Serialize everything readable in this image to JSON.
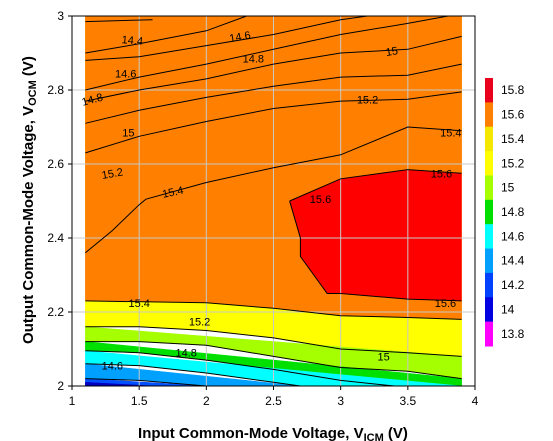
{
  "chart_data": {
    "type": "contour",
    "xlabel_main": "Input Common-Mode Voltage, V",
    "xlabel_sub": "ICM",
    "xlabel_unit": " (V)",
    "ylabel_main": "Output Common-Mode Voltage, V",
    "ylabel_sub": "OCM",
    "ylabel_unit": " (V)",
    "xlim": [
      1,
      4
    ],
    "ylim": [
      2,
      3
    ],
    "x_ticks": [
      "1",
      "1.5",
      "2",
      "2.5",
      "3",
      "3.5",
      "4"
    ],
    "y_ticks": [
      "2",
      "2.2",
      "2.4",
      "2.6",
      "2.8",
      "3"
    ],
    "grid": true,
    "data_x_range": [
      1.1,
      3.9
    ],
    "levels": [
      13.8,
      14,
      14.2,
      14.4,
      14.6,
      14.8,
      15,
      15.2,
      15.4,
      15.6,
      15.8
    ],
    "colorbar_labels": [
      "15.8",
      "15.6",
      "15.4",
      "15.2",
      "15",
      "14.8",
      "14.6",
      "14.4",
      "14.2",
      "14",
      "13.8"
    ],
    "colorbar_colors": [
      "#e8001c",
      "#ff8000",
      "#f5e800",
      "#ffff00",
      "#a6ff00",
      "#00e000",
      "#00ffff",
      "#00a0ff",
      "#0040ff",
      "#0000e0",
      "#ff00ff"
    ],
    "bands": [
      {
        "level": 14.0,
        "color": "#b020e0",
        "upper": [
          [
            1.1,
            3.0
          ],
          [
            1.6,
            3.0
          ]
        ],
        "lower": [
          [
            1.1,
            2.985
          ],
          [
            1.6,
            2.99
          ]
        ]
      },
      {
        "level": 14.2,
        "color": "#0000e0",
        "upper": [
          [
            1.1,
            3.0
          ],
          [
            1.3,
            3.0
          ],
          [
            1.6,
            2.985
          ],
          [
            2.0,
            3.0
          ],
          [
            2.2,
            3.0
          ]
        ],
        "lower": [
          [
            1.1,
            2.9
          ],
          [
            1.5,
            2.925
          ],
          [
            2.0,
            2.96
          ],
          [
            2.3,
            3.0
          ]
        ]
      },
      {
        "level": 14.4,
        "color": "#0050ff",
        "upper": [
          [
            1.1,
            3.0
          ],
          [
            2.3,
            3.0
          ]
        ],
        "lower": [
          [
            1.1,
            2.88
          ],
          [
            1.5,
            2.89
          ],
          [
            2.0,
            2.92
          ],
          [
            2.5,
            2.95
          ],
          [
            3.0,
            2.99
          ],
          [
            3.2,
            3.0
          ]
        ]
      },
      {
        "level": 14.6,
        "color": "#00ffff",
        "upper": [
          [
            1.1,
            3.0
          ],
          [
            3.2,
            3.0
          ]
        ],
        "lower": [
          [
            1.1,
            2.8
          ],
          [
            1.5,
            2.835
          ],
          [
            2.0,
            2.87
          ],
          [
            2.5,
            2.91
          ],
          [
            3.0,
            2.95
          ],
          [
            3.5,
            2.98
          ],
          [
            3.8,
            3.0
          ]
        ]
      },
      {
        "level": 14.8,
        "color": "#00e000",
        "upper": [
          [
            1.1,
            3.0
          ],
          [
            3.8,
            3.0
          ],
          [
            3.9,
            3.0
          ]
        ],
        "lower": [
          [
            1.1,
            2.77
          ],
          [
            1.5,
            2.8
          ],
          [
            2.0,
            2.83
          ],
          [
            2.5,
            2.87
          ],
          [
            3.0,
            2.9
          ],
          [
            3.5,
            2.91
          ],
          [
            3.9,
            2.945
          ]
        ]
      },
      {
        "level": 15.0,
        "color": "#a6ff00",
        "upper": [
          [
            1.1,
            3.0
          ],
          [
            3.9,
            3.0
          ]
        ],
        "lower": [
          [
            1.1,
            2.71
          ],
          [
            1.5,
            2.745
          ],
          [
            2.0,
            2.78
          ],
          [
            2.5,
            2.81
          ],
          [
            3.0,
            2.835
          ],
          [
            3.5,
            2.84
          ],
          [
            3.9,
            2.87
          ]
        ]
      },
      {
        "level": 15.2,
        "color": "#f5e800",
        "upper": [
          [
            1.1,
            3.0
          ],
          [
            3.9,
            3.0
          ]
        ],
        "lower": [
          [
            1.1,
            2.63
          ],
          [
            1.5,
            2.675
          ],
          [
            2.0,
            2.715
          ],
          [
            2.5,
            2.75
          ],
          [
            3.0,
            2.77
          ],
          [
            3.5,
            2.775
          ],
          [
            3.9,
            2.795
          ]
        ]
      },
      {
        "level": 15.4,
        "color": "#ffff00",
        "upper": [
          [
            1.1,
            3.0
          ],
          [
            3.9,
            3.0
          ]
        ],
        "lower": [
          [
            1.1,
            2.36
          ],
          [
            1.3,
            2.42
          ],
          [
            1.5,
            2.49
          ],
          [
            1.55,
            2.505
          ],
          [
            2.0,
            2.55
          ],
          [
            2.5,
            2.59
          ],
          [
            3.0,
            2.625
          ],
          [
            3.5,
            2.7
          ],
          [
            3.9,
            2.69
          ]
        ]
      },
      {
        "level": 15.6,
        "color": "#ff8000",
        "upper": [
          [
            1.1,
            3.0
          ],
          [
            3.9,
            3.0
          ]
        ],
        "lower": [
          [
            1.1,
            2.23
          ],
          [
            2.0,
            2.225
          ],
          [
            2.5,
            2.21
          ],
          [
            3.0,
            2.19
          ],
          [
            3.5,
            2.185
          ],
          [
            3.9,
            2.18
          ]
        ]
      },
      {
        "level": 15.2,
        "color": "#ffff00",
        "upper": [
          [
            1.1,
            2.23
          ],
          [
            2.0,
            2.225
          ],
          [
            2.5,
            2.21
          ],
          [
            3.0,
            2.19
          ],
          [
            3.5,
            2.185
          ],
          [
            3.9,
            2.18
          ]
        ],
        "lower": [
          [
            1.1,
            2.16
          ],
          [
            1.5,
            2.16
          ],
          [
            2.0,
            2.15
          ],
          [
            2.5,
            2.13
          ],
          [
            3.0,
            2.1
          ],
          [
            3.5,
            2.09
          ],
          [
            3.9,
            2.08
          ]
        ]
      },
      {
        "level": 15.0,
        "color": "#a6ff00",
        "upper": [
          [
            1.1,
            2.16
          ],
          [
            3.9,
            2.08
          ]
        ],
        "lower": [
          [
            1.1,
            2.12
          ],
          [
            1.5,
            2.12
          ],
          [
            2.0,
            2.11
          ],
          [
            2.5,
            2.08
          ],
          [
            3.0,
            2.05
          ],
          [
            3.5,
            2.04
          ],
          [
            3.9,
            2.02
          ]
        ]
      },
      {
        "level": 14.8,
        "color": "#00e000",
        "upper": [
          [
            1.1,
            2.12
          ],
          [
            3.9,
            2.02
          ]
        ],
        "lower": [
          [
            1.1,
            2.095
          ],
          [
            1.5,
            2.09
          ],
          [
            2.0,
            2.07
          ],
          [
            2.5,
            2.045
          ],
          [
            3.0,
            2.015
          ],
          [
            3.4,
            2.0
          ],
          [
            3.9,
            2.0
          ]
        ]
      },
      {
        "level": 14.6,
        "color": "#00ffff",
        "upper": [
          [
            1.1,
            2.095
          ],
          [
            3.9,
            2.0
          ]
        ],
        "lower": [
          [
            1.1,
            2.06
          ],
          [
            1.5,
            2.055
          ],
          [
            2.0,
            2.035
          ],
          [
            2.5,
            2.01
          ],
          [
            2.7,
            2.0
          ]
        ]
      },
      {
        "level": 14.4,
        "color": "#00a0ff",
        "upper": [
          [
            1.1,
            2.06
          ],
          [
            2.7,
            2.0
          ]
        ],
        "lower": [
          [
            1.1,
            2.02
          ],
          [
            1.5,
            2.015
          ],
          [
            2.0,
            2.0
          ]
        ]
      },
      {
        "level": 14.2,
        "color": "#0050ff",
        "upper": [
          [
            1.1,
            2.02
          ],
          [
            2.0,
            2.0
          ]
        ],
        "lower": [
          [
            1.1,
            2.0
          ],
          [
            1.6,
            2.0
          ]
        ]
      },
      {
        "level": 14.0,
        "color": "#0000c0",
        "upper": [
          [
            1.1,
            2.01
          ],
          [
            1.6,
            2.0
          ]
        ],
        "lower": [
          [
            1.1,
            2.0
          ],
          [
            1.6,
            2.0
          ]
        ]
      }
    ],
    "peak_region": {
      "level": 15.6,
      "color": "#ff0000",
      "points": [
        [
          2.62,
          2.5
        ],
        [
          3.0,
          2.56
        ],
        [
          3.5,
          2.585
        ],
        [
          3.9,
          2.575
        ],
        [
          3.9,
          2.23
        ],
        [
          3.5,
          2.235
        ],
        [
          3.0,
          2.25
        ],
        [
          2.9,
          2.25
        ],
        [
          2.7,
          2.35
        ],
        [
          2.7,
          2.4
        ]
      ]
    },
    "contour_lines": [
      [
        [
          1.1,
          2.985
        ],
        [
          1.6,
          2.99
        ]
      ],
      [
        [
          1.1,
          2.9
        ],
        [
          1.5,
          2.925
        ],
        [
          2.0,
          2.96
        ],
        [
          2.3,
          3.0
        ]
      ],
      [
        [
          1.1,
          2.88
        ],
        [
          1.5,
          2.89
        ],
        [
          2.0,
          2.92
        ],
        [
          2.5,
          2.95
        ],
        [
          3.0,
          2.99
        ],
        [
          3.2,
          3.0
        ]
      ],
      [
        [
          1.1,
          2.8
        ],
        [
          1.5,
          2.835
        ],
        [
          2.0,
          2.87
        ],
        [
          2.5,
          2.91
        ],
        [
          3.0,
          2.95
        ],
        [
          3.5,
          2.98
        ],
        [
          3.8,
          3.0
        ]
      ],
      [
        [
          1.1,
          2.77
        ],
        [
          1.5,
          2.8
        ],
        [
          2.0,
          2.83
        ],
        [
          2.5,
          2.87
        ],
        [
          3.0,
          2.9
        ],
        [
          3.5,
          2.91
        ],
        [
          3.9,
          2.945
        ]
      ],
      [
        [
          1.1,
          2.71
        ],
        [
          1.5,
          2.745
        ],
        [
          2.0,
          2.78
        ],
        [
          2.5,
          2.81
        ],
        [
          3.0,
          2.835
        ],
        [
          3.5,
          2.84
        ],
        [
          3.9,
          2.87
        ]
      ],
      [
        [
          1.1,
          2.63
        ],
        [
          1.5,
          2.675
        ],
        [
          2.0,
          2.715
        ],
        [
          2.5,
          2.75
        ],
        [
          3.0,
          2.77
        ],
        [
          3.5,
          2.775
        ],
        [
          3.9,
          2.795
        ]
      ],
      [
        [
          1.1,
          2.36
        ],
        [
          1.3,
          2.42
        ],
        [
          1.5,
          2.49
        ],
        [
          1.55,
          2.505
        ],
        [
          2.0,
          2.55
        ],
        [
          2.5,
          2.59
        ],
        [
          3.0,
          2.625
        ],
        [
          3.5,
          2.7
        ],
        [
          3.9,
          2.69
        ]
      ],
      [
        [
          2.62,
          2.5
        ],
        [
          3.0,
          2.56
        ],
        [
          3.5,
          2.585
        ],
        [
          3.9,
          2.575
        ]
      ],
      [
        [
          3.9,
          2.23
        ],
        [
          3.5,
          2.235
        ],
        [
          3.0,
          2.25
        ],
        [
          2.9,
          2.25
        ],
        [
          2.7,
          2.35
        ],
        [
          2.7,
          2.4
        ],
        [
          2.62,
          2.5
        ]
      ],
      [
        [
          1.1,
          2.23
        ],
        [
          2.0,
          2.225
        ],
        [
          2.5,
          2.21
        ],
        [
          3.0,
          2.19
        ],
        [
          3.5,
          2.185
        ],
        [
          3.9,
          2.18
        ]
      ],
      [
        [
          1.1,
          2.16
        ],
        [
          1.5,
          2.16
        ],
        [
          2.0,
          2.15
        ],
        [
          2.5,
          2.13
        ],
        [
          3.0,
          2.1
        ],
        [
          3.5,
          2.09
        ],
        [
          3.9,
          2.08
        ]
      ],
      [
        [
          1.1,
          2.12
        ],
        [
          1.5,
          2.12
        ],
        [
          2.0,
          2.11
        ],
        [
          2.5,
          2.08
        ],
        [
          3.0,
          2.05
        ],
        [
          3.5,
          2.04
        ],
        [
          3.9,
          2.02
        ]
      ],
      [
        [
          1.1,
          2.095
        ],
        [
          1.5,
          2.09
        ],
        [
          2.0,
          2.07
        ],
        [
          2.5,
          2.045
        ],
        [
          3.0,
          2.015
        ],
        [
          3.4,
          2.0
        ]
      ],
      [
        [
          1.1,
          2.06
        ],
        [
          1.5,
          2.055
        ],
        [
          2.0,
          2.035
        ],
        [
          2.5,
          2.01
        ],
        [
          2.7,
          2.0
        ]
      ],
      [
        [
          1.1,
          2.02
        ],
        [
          1.5,
          2.015
        ],
        [
          2.0,
          2.0
        ]
      ]
    ],
    "annotations": [
      {
        "text": "14.4",
        "x": 1.45,
        "y": 2.935,
        "angle": 5
      },
      {
        "text": "14.6",
        "x": 2.25,
        "y": 2.945,
        "angle": -10
      },
      {
        "text": "14.6",
        "x": 1.4,
        "y": 2.845,
        "angle": 0
      },
      {
        "text": "14.8",
        "x": 2.35,
        "y": 2.885,
        "angle": 0
      },
      {
        "text": "15",
        "x": 3.38,
        "y": 2.905,
        "angle": -10
      },
      {
        "text": "14.8",
        "x": 1.15,
        "y": 2.775,
        "angle": -15
      },
      {
        "text": "15",
        "x": 1.42,
        "y": 2.685,
        "angle": 0
      },
      {
        "text": "15.2",
        "x": 3.2,
        "y": 2.775,
        "angle": 0
      },
      {
        "text": "15.2",
        "x": 1.3,
        "y": 2.575,
        "angle": -10
      },
      {
        "text": "15.4",
        "x": 1.75,
        "y": 2.525,
        "angle": -12
      },
      {
        "text": "15.4",
        "x": 3.82,
        "y": 2.685,
        "angle": 0
      },
      {
        "text": "15.6",
        "x": 2.85,
        "y": 2.505,
        "angle": 0
      },
      {
        "text": "15.6",
        "x": 3.75,
        "y": 2.575,
        "angle": 0
      },
      {
        "text": "15.4",
        "x": 1.5,
        "y": 2.225,
        "angle": 0
      },
      {
        "text": "15.6",
        "x": 3.78,
        "y": 2.225,
        "angle": 0
      },
      {
        "text": "15.2",
        "x": 1.95,
        "y": 2.175,
        "angle": 0
      },
      {
        "text": "14.8",
        "x": 1.85,
        "y": 2.09,
        "angle": 0
      },
      {
        "text": "15",
        "x": 3.32,
        "y": 2.08,
        "angle": 0
      },
      {
        "text": "14.6",
        "x": 1.3,
        "y": 2.055,
        "angle": 0
      }
    ]
  }
}
